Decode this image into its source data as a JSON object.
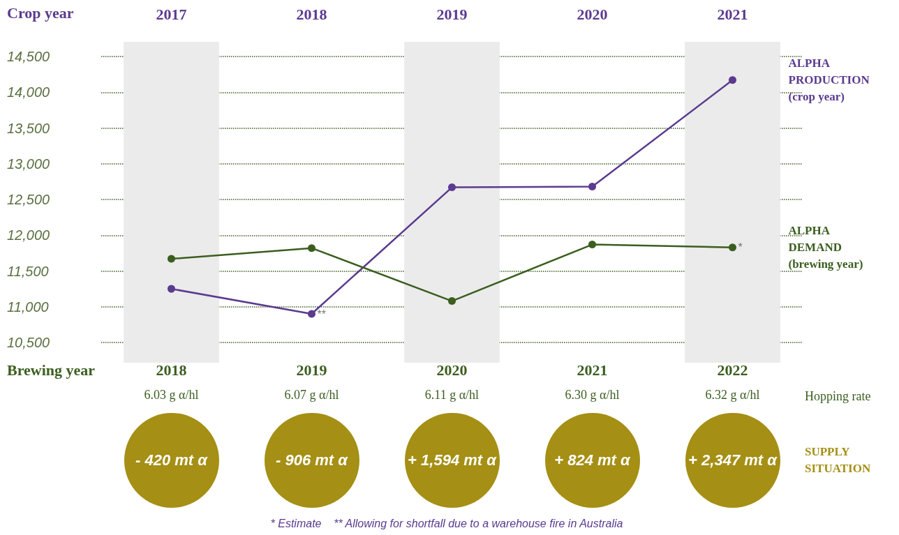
{
  "chart_data": {
    "type": "line",
    "xlabel": "Crop year",
    "categories": [
      "2017",
      "2018",
      "2019",
      "2020",
      "2021"
    ],
    "series": [
      {
        "name": "ALPHA PRODUCTION (crop year)",
        "color": "#5b3a8f",
        "values": [
          11250,
          10900,
          12670,
          12680,
          14170
        ]
      },
      {
        "name": "ALPHA DEMAND (brewing year)",
        "color": "#3b5e1f",
        "values": [
          11670,
          11820,
          11080,
          11870,
          11830
        ]
      }
    ],
    "ylim": [
      10500,
      14500
    ],
    "yticks": [
      {
        "value": 10500,
        "label": "10,500"
      },
      {
        "value": 11000,
        "label": "11,000"
      },
      {
        "value": 11500,
        "label": "11,500"
      },
      {
        "value": 12000,
        "label": "12,000"
      },
      {
        "value": 12500,
        "label": "12,500"
      },
      {
        "value": 13000,
        "label": "13,000"
      },
      {
        "value": 13500,
        "label": "13,500"
      },
      {
        "value": 14000,
        "label": "14,000"
      },
      {
        "value": 14500,
        "label": "14,500"
      }
    ],
    "grid": "y",
    "legend": false,
    "marker": "circle",
    "line_style": "solid",
    "bands": [
      {
        "axis": "x",
        "from": "2017",
        "to": "2017",
        "color": "#ebebeb"
      },
      {
        "axis": "x",
        "from": "2019",
        "to": "2019",
        "color": "#ebebeb"
      },
      {
        "axis": "x",
        "from": "2021",
        "to": "2021",
        "color": "#ebebeb"
      }
    ],
    "annotations": [
      "Brewing year",
      "Hopping rate",
      "SUPPLY SITUATION",
      "* Estimate    ** Allowing for shortfall due to a warehouse fire in Australia",
      {
        "text": "**",
        "x": "2018",
        "y": 10900
      },
      {
        "text": "*",
        "x": "2021",
        "y": 11830
      },
      "2018",
      "6.03 g α/hl",
      "- 420 mt α",
      "2019",
      "6.07 g α/hl",
      "- 906 mt α",
      "2020",
      "6.11 g α/hl",
      "+ 1,594 mt α",
      "2021",
      "6.30 g α/hl",
      "+ 824 mt α",
      "2022",
      "6.32 g α/hl",
      "+ 2,347 mt α"
    ]
  }
}
